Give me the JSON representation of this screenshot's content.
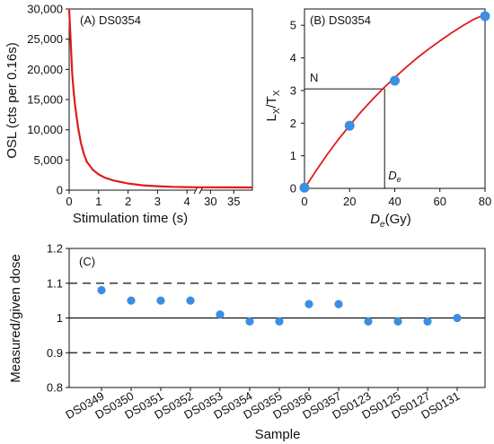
{
  "chart_data": [
    {
      "type": "line",
      "panel": "A",
      "title": "(A) DS0354",
      "xlabel": "Stimulation time (s)",
      "ylabel": "OSL (cts per 0.16s)",
      "x_break": true,
      "x_segment1": {
        "xlim": [
          0,
          4.3
        ],
        "ticks": [
          "0",
          "1",
          "2",
          "3",
          "4"
        ]
      },
      "x_segment2": {
        "xlim": [
          28,
          39
        ],
        "ticks": [
          "30",
          "35"
        ]
      },
      "ylim": [
        0,
        30000
      ],
      "yticks": [
        "0",
        "5,000",
        "10,000",
        "15,000",
        "20,000",
        "25,000",
        "30,000"
      ],
      "ytick_values": [
        0,
        5000,
        10000,
        15000,
        20000,
        25000,
        30000
      ],
      "line_color": "#e31a1c",
      "series": [
        {
          "x": [
            0,
            0.05,
            0.1,
            0.15,
            0.2,
            0.3,
            0.4,
            0.5,
            0.6,
            0.8,
            1.0,
            1.2,
            1.5,
            2.0,
            2.5,
            3.0,
            3.5,
            4.0,
            4.3,
            28,
            39
          ],
          "y": [
            30000,
            25000,
            19500,
            16500,
            14000,
            10500,
            7800,
            6000,
            4700,
            3400,
            2600,
            2100,
            1600,
            1100,
            800,
            650,
            550,
            500,
            480,
            480,
            450
          ]
        }
      ]
    },
    {
      "type": "scatter",
      "panel": "B",
      "title": "(B) DS0354",
      "xlabel": "De(Gy)",
      "ylabel": "LX/TX",
      "xlim": [
        0,
        80
      ],
      "ylim": [
        0,
        5.5
      ],
      "xticks": [
        "0",
        "20",
        "40",
        "60",
        "80"
      ],
      "xtick_values": [
        0,
        20,
        40,
        60,
        80
      ],
      "yticks": [
        "0",
        "1",
        "2",
        "3",
        "4",
        "5"
      ],
      "ytick_values": [
        0,
        1,
        2,
        3,
        4,
        5
      ],
      "point_color": "#3b8fe0",
      "curve_color": "#e31a1c",
      "points": {
        "x": [
          0,
          20,
          40,
          80
        ],
        "y": [
          0.02,
          1.92,
          3.3,
          5.28
        ]
      },
      "fit_curve": {
        "x": [
          0,
          5,
          10,
          15,
          20,
          25,
          30,
          35,
          40,
          45,
          50,
          55,
          60,
          65,
          70,
          75,
          80
        ],
        "y": [
          0,
          0.53,
          1.03,
          1.5,
          1.93,
          2.34,
          2.72,
          3.07,
          3.4,
          3.71,
          4.0,
          4.27,
          4.52,
          4.76,
          4.98,
          5.18,
          5.33
        ]
      },
      "annotations": {
        "N_label": "N",
        "N_value": 3.05,
        "De_label": "De",
        "De_value": 35.5
      }
    },
    {
      "type": "scatter",
      "panel": "C",
      "title": "(C)",
      "xlabel": "Sample",
      "ylabel": "Measured/given dose",
      "ylim": [
        0.8,
        1.2
      ],
      "yticks": [
        "0.8",
        "0.9",
        "1",
        "1.1",
        "1.2"
      ],
      "ytick_values": [
        0.8,
        0.9,
        1.0,
        1.1,
        1.2
      ],
      "reference_lines": {
        "solid": [
          1.0
        ],
        "dashed": [
          0.9,
          1.1
        ]
      },
      "point_color": "#3b8fe0",
      "categories": [
        "DS0349",
        "DS0350",
        "DS0351",
        "DS0352",
        "DS0353",
        "DS0354",
        "DS0355",
        "DS0356",
        "DS0357",
        "DS0123",
        "DS0125",
        "DS0127",
        "DS0131"
      ],
      "values": [
        1.08,
        1.05,
        1.05,
        1.05,
        1.01,
        0.99,
        0.99,
        1.04,
        1.04,
        0.99,
        0.99,
        0.99,
        1.0
      ]
    }
  ]
}
